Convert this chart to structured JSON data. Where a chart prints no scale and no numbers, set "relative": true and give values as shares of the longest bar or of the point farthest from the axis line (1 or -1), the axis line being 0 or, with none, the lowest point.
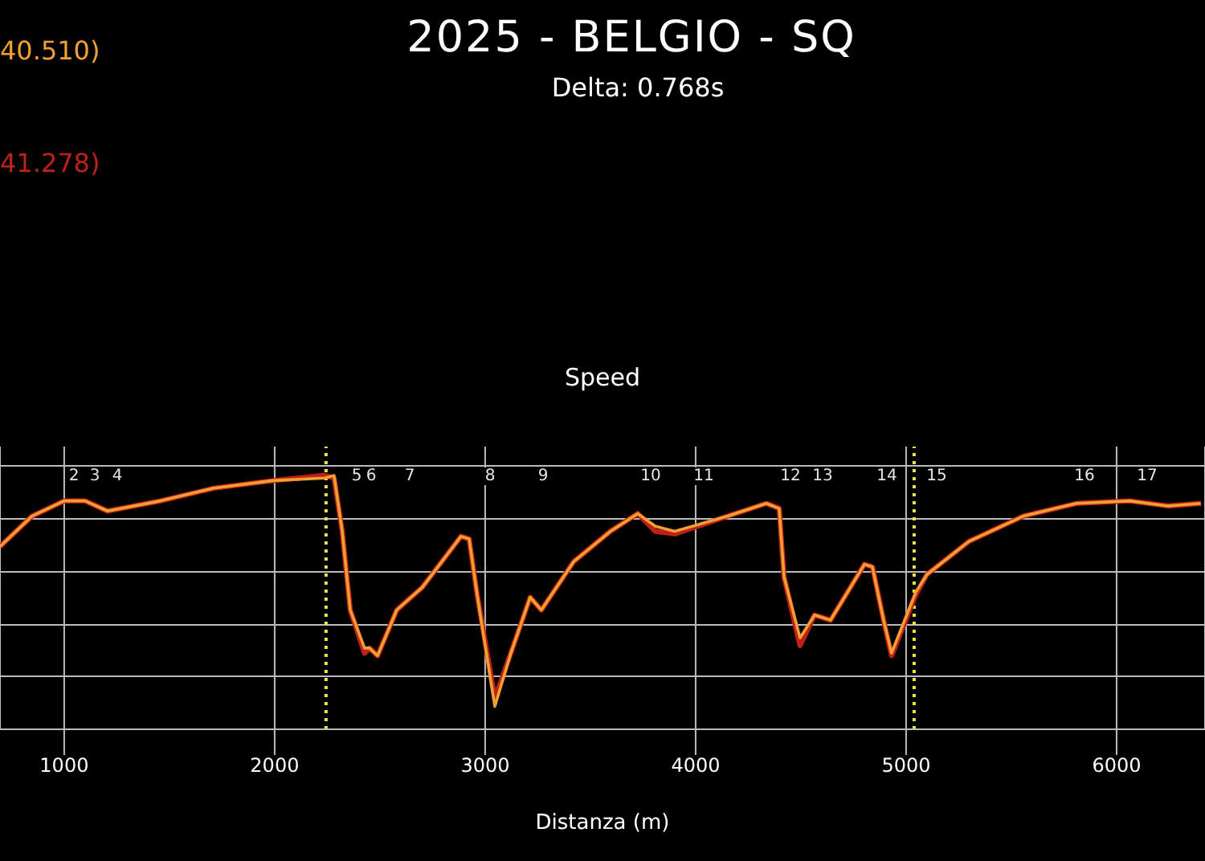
{
  "chart_data": {
    "type": "line",
    "title": "2025 - BELGIO - SQ",
    "subtitle": "Delta: 0.768s",
    "xlabel": "Distanza (m)",
    "relative": true,
    "grid": true,
    "legend": "top left",
    "annotations": [
      "Speed",
      "2",
      "3",
      "4",
      "5",
      "6",
      "7",
      "8",
      "9",
      "10",
      "11",
      "12",
      "13",
      "14",
      "15",
      "16",
      "17"
    ],
    "x": [
      695,
      847,
      1000,
      1099,
      1206,
      1458,
      1710,
      1992,
      2237,
      2282,
      2321,
      2359,
      2427,
      2450,
      2489,
      2580,
      2702,
      2885,
      2924,
      2962,
      3046,
      3122,
      3214,
      3267,
      3420,
      3595,
      3725,
      3809,
      3901,
      4153,
      4336,
      4397,
      4420,
      4496,
      4565,
      4641,
      4802,
      4840,
      4893,
      4931,
      5046,
      5099,
      5298,
      5557,
      5809,
      6061,
      6244,
      6400
    ],
    "xlim": [
      695,
      6420
    ],
    "xticks": [
      1000,
      2000,
      3000,
      4000,
      5000,
      6000
    ],
    "ref_lines": [
      {
        "axis": "x",
        "value": 2244,
        "color": "#e8e840",
        "line_style": "dotted"
      },
      {
        "axis": "x",
        "value": 5038,
        "color": "#e8e840",
        "line_style": "dotted"
      }
    ],
    "series": [
      {
        "name": "40.510)",
        "color": "#f0a030",
        "values": [
          0.72,
          0.84,
          0.9,
          0.9,
          0.86,
          0.9,
          0.95,
          0.98,
          0.99,
          1.0,
          0.78,
          0.47,
          0.32,
          0.32,
          0.29,
          0.47,
          0.56,
          0.76,
          0.75,
          0.53,
          0.09,
          0.3,
          0.52,
          0.47,
          0.66,
          0.78,
          0.85,
          0.8,
          0.78,
          0.84,
          0.89,
          0.87,
          0.6,
          0.36,
          0.45,
          0.43,
          0.65,
          0.64,
          0.43,
          0.3,
          0.54,
          0.61,
          0.74,
          0.84,
          0.89,
          0.9,
          0.88,
          0.89
        ]
      },
      {
        "name": "41.278)",
        "color": "#c0201c",
        "values": [
          0.72,
          0.84,
          0.9,
          0.9,
          0.86,
          0.9,
          0.95,
          0.98,
          1.0,
          0.99,
          0.78,
          0.47,
          0.3,
          0.32,
          0.29,
          0.47,
          0.56,
          0.76,
          0.75,
          0.53,
          0.12,
          0.3,
          0.52,
          0.47,
          0.66,
          0.78,
          0.85,
          0.78,
          0.77,
          0.84,
          0.89,
          0.87,
          0.6,
          0.33,
          0.45,
          0.43,
          0.65,
          0.64,
          0.43,
          0.29,
          0.53,
          0.61,
          0.74,
          0.84,
          0.89,
          0.9,
          0.88,
          0.89
        ]
      }
    ]
  }
}
